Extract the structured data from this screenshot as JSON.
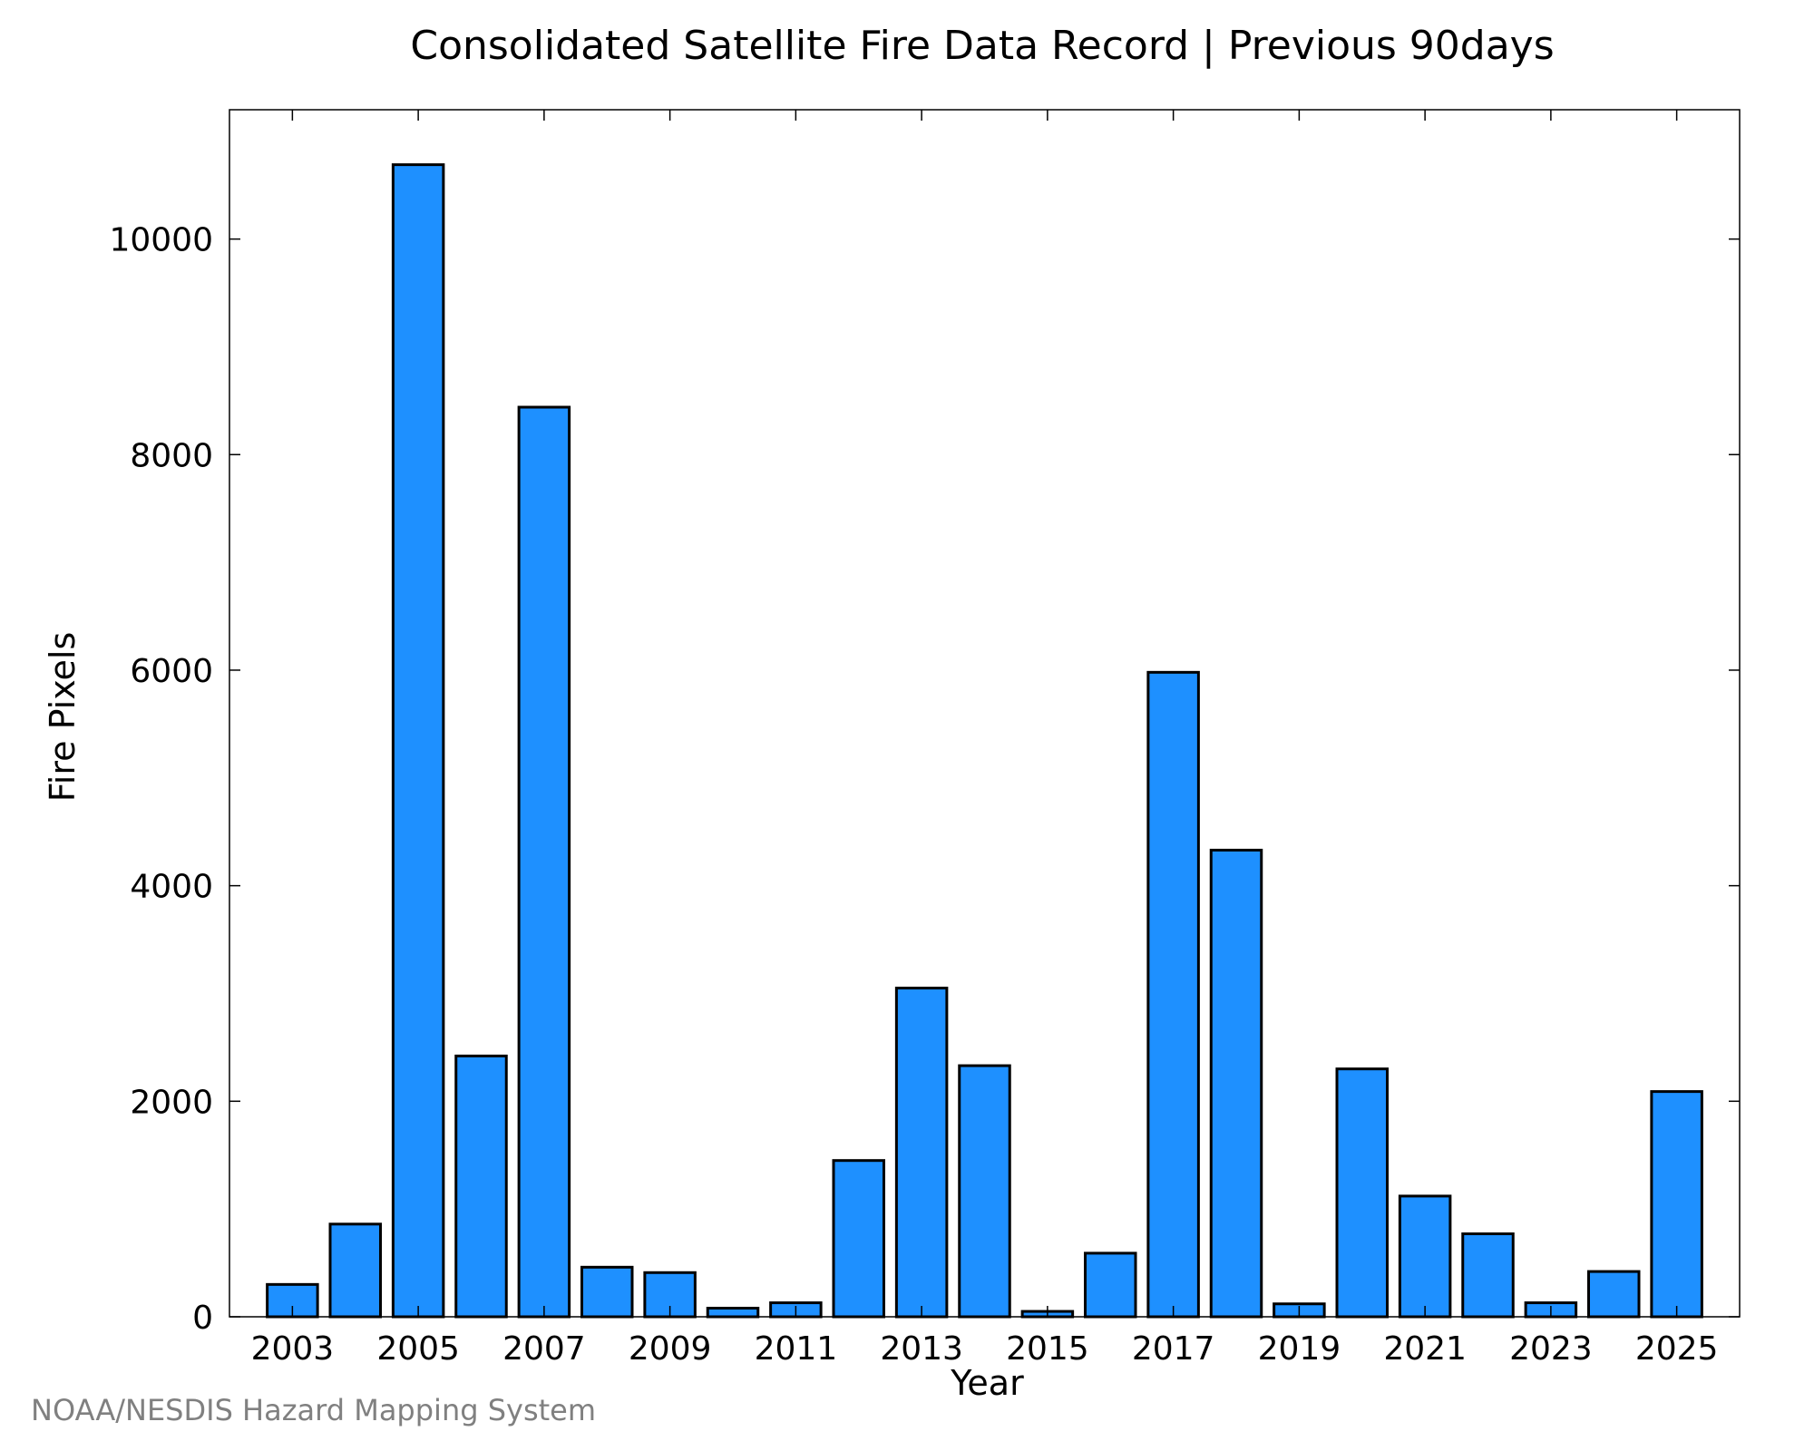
{
  "credit": "NOAA/NESDIS Hazard Mapping System",
  "colors": {
    "bar_fill": "#1e90ff",
    "bar_stroke": "#000000",
    "axis": "#000000",
    "credit": "#808080"
  },
  "chart_data": {
    "type": "bar",
    "title": "Consolidated Satellite Fire Data Record | Previous 90days",
    "xlabel": "Year",
    "ylabel": "Fire Pixels",
    "categories": [
      "2003",
      "2004",
      "2005",
      "2006",
      "2007",
      "2008",
      "2009",
      "2010",
      "2011",
      "2012",
      "2013",
      "2014",
      "2015",
      "2016",
      "2017",
      "2018",
      "2019",
      "2020",
      "2021",
      "2022",
      "2023",
      "2024",
      "2025"
    ],
    "values": [
      300,
      860,
      10690,
      2420,
      8440,
      460,
      410,
      80,
      130,
      1450,
      3050,
      2330,
      50,
      590,
      5980,
      4330,
      120,
      2300,
      1120,
      770,
      130,
      420,
      2090
    ],
    "x_ticks": [
      "2003",
      "2005",
      "2007",
      "2009",
      "2011",
      "2013",
      "2015",
      "2017",
      "2019",
      "2021",
      "2023",
      "2025"
    ],
    "y_ticks": [
      0,
      2000,
      4000,
      6000,
      8000,
      10000
    ],
    "ylim": [
      0,
      11200
    ],
    "xlim": [
      2002.0,
      2026.0
    ],
    "grid": false,
    "legend": "none"
  }
}
